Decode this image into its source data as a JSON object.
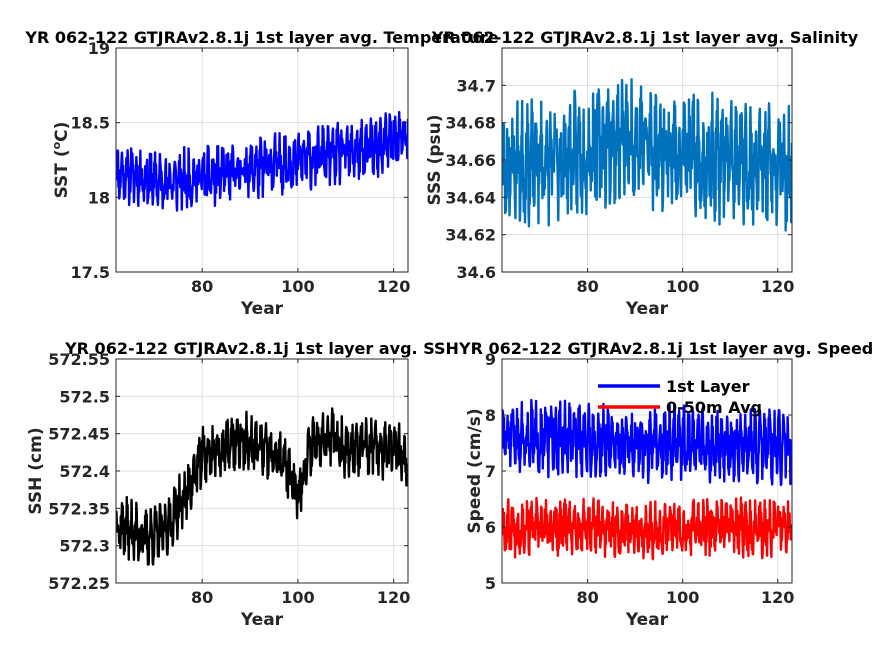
{
  "chart_data": [
    {
      "type": "line",
      "title": "YR 062-122 GTJRAv2.8.1j 1st layer avg. Temperature",
      "xlabel": "Year",
      "ylabel": "SST (°C)",
      "ylabel_pre": "SST (",
      "ylabel_sup": "o",
      "ylabel_post": "C)",
      "xlim": [
        62,
        123
      ],
      "ylim": [
        17.5,
        19
      ],
      "xticks": [
        80,
        100,
        120
      ],
      "yticks": [
        17.5,
        18,
        18.5,
        19
      ],
      "ytick_labels": [
        "17.5",
        "18",
        "18.5",
        "19"
      ],
      "grid": true,
      "series": [
        {
          "color": "#0000ff",
          "seed": 11,
          "base": [
            [
              62,
              18.18
            ],
            [
              72,
              18.1
            ],
            [
              82,
              18.14
            ],
            [
              95,
              18.22
            ],
            [
              105,
              18.28
            ],
            [
              115,
              18.32
            ],
            [
              123,
              18.42
            ]
          ],
          "amp": 0.17,
          "lo": 17.72,
          "hi": 18.8
        }
      ]
    },
    {
      "type": "line",
      "title": "YR 062-122 GTJRAv2.8.1j 1st layer avg. Salinity",
      "xlabel": "Year",
      "ylabel": "SSS (psu)",
      "xlim": [
        62,
        123
      ],
      "ylim": [
        34.6,
        34.72
      ],
      "xticks": [
        80,
        100,
        120
      ],
      "yticks": [
        34.6,
        34.62,
        34.64,
        34.66,
        34.68,
        34.7
      ],
      "ytick_labels": [
        "34.6",
        "34.62",
        "34.64",
        "34.66",
        "34.68",
        "34.7"
      ],
      "grid": true,
      "series": [
        {
          "color": "#0072bd",
          "seed": 23,
          "base": [
            [
              62,
              34.657
            ],
            [
              75,
              34.66
            ],
            [
              87,
              34.672
            ],
            [
              95,
              34.667
            ],
            [
              105,
              34.66
            ],
            [
              115,
              34.658
            ],
            [
              123,
              34.655
            ]
          ],
          "amp": 0.028,
          "lo": 34.614,
          "hi": 34.716
        }
      ]
    },
    {
      "type": "line",
      "title": "YR 062-122 GTJRAv2.8.1j 1st layer avg. SSH",
      "xlabel": "Year",
      "ylabel": "SSH (cm)",
      "xlim": [
        62,
        123
      ],
      "ylim": [
        572.25,
        572.55
      ],
      "xticks": [
        80,
        100,
        120
      ],
      "yticks": [
        572.25,
        572.3,
        572.35,
        572.4,
        572.45,
        572.5,
        572.55
      ],
      "ytick_labels": [
        "572.25",
        "572.3",
        "572.35",
        "572.4",
        "572.45",
        "572.5",
        "572.55"
      ],
      "grid": true,
      "series": [
        {
          "color": "#000000",
          "seed": 37,
          "base": [
            [
              62,
              572.33
            ],
            [
              68,
              572.31
            ],
            [
              72,
              572.32
            ],
            [
              76,
              572.36
            ],
            [
              80,
              572.42
            ],
            [
              88,
              572.44
            ],
            [
              92,
              572.43
            ],
            [
              97,
              572.41
            ],
            [
              100,
              572.37
            ],
            [
              103,
              572.44
            ],
            [
              106,
              572.45
            ],
            [
              110,
              572.43
            ],
            [
              118,
              572.43
            ],
            [
              123,
              572.42
            ]
          ],
          "amp": 0.033,
          "lo": 572.26,
          "hi": 572.52
        }
      ]
    },
    {
      "type": "line",
      "title": "YR 062-122 GTJRAv2.8.1j 1st layer avg. Speed",
      "xlabel": "Year",
      "ylabel": "Speed (cm/s)",
      "xlim": [
        62,
        123
      ],
      "ylim": [
        5,
        9
      ],
      "xticks": [
        80,
        100,
        120
      ],
      "yticks": [
        5,
        6,
        7,
        8,
        9
      ],
      "ytick_labels": [
        "5",
        "6",
        "7",
        "8",
        "9"
      ],
      "grid": true,
      "legend": {
        "placement": "top-right",
        "entries": [
          "1st Layer",
          "0-50m Avg"
        ]
      },
      "series": [
        {
          "name": "1st Layer",
          "color": "#0000ff",
          "seed": 51,
          "base": [
            [
              62,
              7.6
            ],
            [
              70,
              7.6
            ],
            [
              80,
              7.55
            ],
            [
              90,
              7.5
            ],
            [
              100,
              7.5
            ],
            [
              110,
              7.45
            ],
            [
              123,
              7.4
            ]
          ],
          "amp": 0.55,
          "lo": 6.75,
          "hi": 8.8
        },
        {
          "name": "0-50m Avg",
          "color": "#ff0000",
          "seed": 67,
          "base": [
            [
              62,
              6.0
            ],
            [
              70,
              6.0
            ],
            [
              80,
              6.0
            ],
            [
              90,
              5.95
            ],
            [
              100,
              6.0
            ],
            [
              110,
              6.0
            ],
            [
              123,
              5.95
            ]
          ],
          "amp": 0.42,
          "lo": 5.15,
          "hi": 7.15
        }
      ]
    }
  ]
}
